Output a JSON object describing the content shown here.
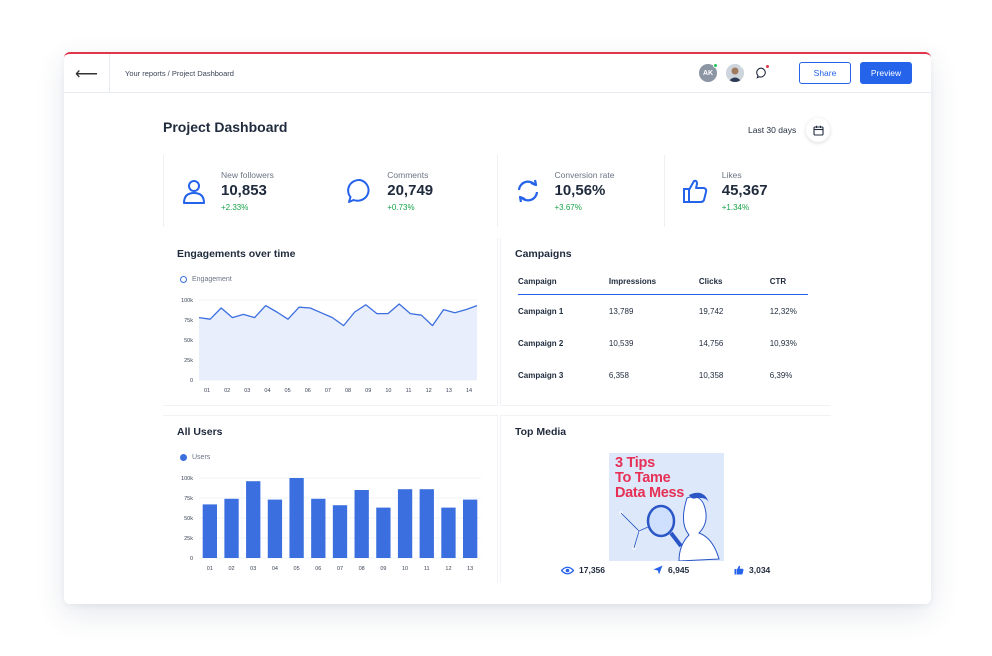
{
  "header": {
    "breadcrumb": "Your reports / Project Dashboard",
    "avatar_initials": "AK",
    "share_label": "Share",
    "preview_label": "Preview"
  },
  "page": {
    "title": "Project Dashboard",
    "date_range": "Last 30 days"
  },
  "kpis": [
    {
      "label": "New followers",
      "value": "10,853",
      "delta": "+2.33%",
      "icon": "user-icon"
    },
    {
      "label": "Comments",
      "value": "20,749",
      "delta": "+0.73%",
      "icon": "comment-icon"
    },
    {
      "label": "Conversion rate",
      "value": "10,56%",
      "delta": "+3.67%",
      "icon": "refresh-icon"
    },
    {
      "label": "Likes",
      "value": "45,367",
      "delta": "+1.34%",
      "icon": "thumbs-up-icon"
    }
  ],
  "engagement": {
    "title": "Engagements over time",
    "legend": "Engagement"
  },
  "campaigns": {
    "title": "Campaigns",
    "columns": [
      "Campaign",
      "Impressions",
      "Clicks",
      "CTR"
    ],
    "rows": [
      [
        "Campaign 1",
        "13,789",
        "19,742",
        "12,32%"
      ],
      [
        "Campaign 2",
        "10,539",
        "14,756",
        "10,93%"
      ],
      [
        "Campaign 3",
        "6,358",
        "10,358",
        "6,39%"
      ]
    ]
  },
  "users": {
    "title": "All Users",
    "legend": "Users"
  },
  "media": {
    "title": "Top Media",
    "image_text": [
      "3 Tips",
      "To Tame",
      "Data Mess"
    ],
    "views": "17,356",
    "shares": "6,945",
    "likes": "3,034"
  },
  "colors": {
    "accent": "#2563eb",
    "series": "#3b6fe0",
    "positive": "#16a34a",
    "top_border": "#e0384a",
    "media_text": "#e63056"
  },
  "chart_data": [
    {
      "type": "area",
      "title": "Engagements over time",
      "series": [
        {
          "name": "Engagement",
          "values": [
            78,
            76,
            90,
            78,
            82,
            78,
            93,
            85,
            76,
            91,
            90,
            84,
            78,
            68,
            85,
            94,
            83,
            83,
            95,
            83,
            81,
            68,
            88,
            84,
            88,
            93
          ]
        }
      ],
      "x_ticks": [
        "01",
        "02",
        "03",
        "04",
        "05",
        "06",
        "07",
        "08",
        "09",
        "10",
        "11",
        "12",
        "13",
        "14"
      ],
      "y_ticks": [
        "0",
        "25k",
        "50k",
        "75k",
        "100k"
      ],
      "ylim": [
        0,
        100
      ]
    },
    {
      "type": "bar",
      "title": "All Users",
      "categories": [
        "01",
        "02",
        "03",
        "04",
        "05",
        "06",
        "07",
        "08",
        "09",
        "10",
        "11",
        "12",
        "13"
      ],
      "series": [
        {
          "name": "Users",
          "values": [
            67,
            74,
            96,
            73,
            100,
            74,
            66,
            85,
            63,
            86,
            86,
            63,
            73
          ]
        }
      ],
      "y_ticks": [
        "0",
        "25k",
        "50k",
        "75k",
        "100k"
      ],
      "ylim": [
        0,
        100
      ]
    }
  ]
}
